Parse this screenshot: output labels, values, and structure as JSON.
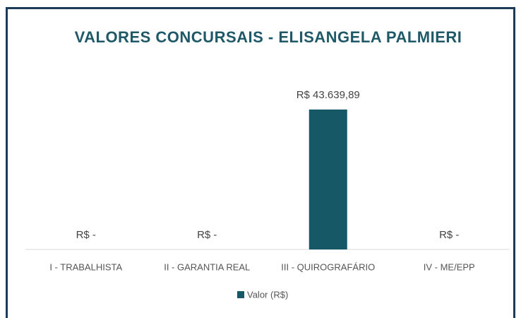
{
  "chart_data": {
    "type": "bar",
    "title": "VALORES CONCURSAIS - ELISANGELA PALMIERI",
    "categories": [
      "I - TRABALHISTA",
      "II - GARANTIA REAL",
      "III - QUIROGRAFÁRIO",
      "IV - ME/EPP"
    ],
    "series": [
      {
        "name": "Valor (R$)",
        "color": "#175866",
        "values": [
          0,
          0,
          43639.89,
          0
        ],
        "value_labels": [
          "R$ -",
          "R$ -",
          "R$ 43.639,89",
          "R$ -"
        ]
      }
    ],
    "legend": "bottom"
  }
}
